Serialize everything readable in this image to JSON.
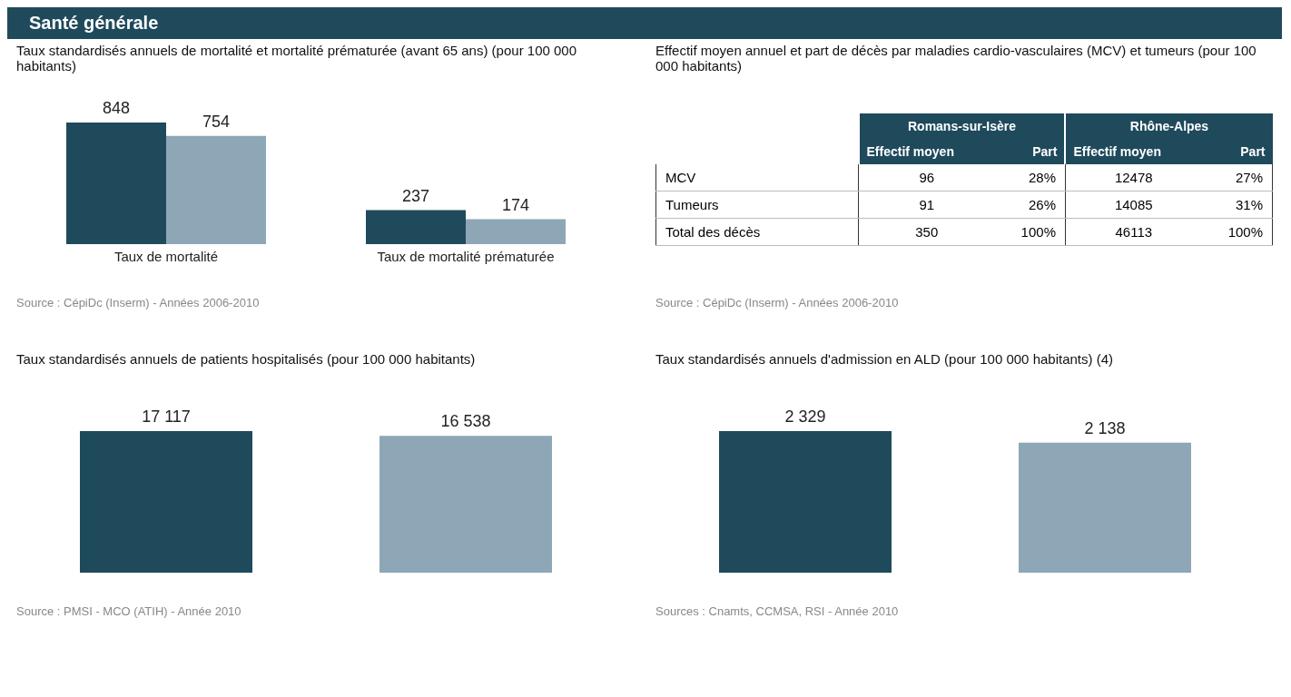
{
  "chart_data": [
    {
      "type": "bar",
      "title": "Santé générale",
      "subtitle": "Taux standardisés annuels de mortalité et mortalité prématurée (avant 65 ans) (pour 100 000 habitants)",
      "categories": [
        "Taux de mortalité",
        "Taux de mortalité prématurée"
      ],
      "series": [
        {
          "color": "#1f4a5c",
          "values": [
            848,
            237
          ]
        },
        {
          "color": "#8ea7b7",
          "values": [
            754,
            174
          ]
        }
      ],
      "data_labels": true,
      "grid": false,
      "legend": false,
      "tick_labels": "x",
      "annotations": [
        "Source : CépiDc (Inserm) - Années 2006-2010"
      ]
    },
    {
      "type": "other",
      "title": "Effectif moyen annuel et part de décès par maladies cardio-vasculaires (MCV) et tumeurs (pour 100 000 habitants)",
      "categories": [
        "Effectif moyen",
        "Part",
        "Effectif moyen",
        "Part"
      ],
      "y_categories": [
        "MCV",
        "Tumeurs",
        "Total des décès"
      ],
      "cells": [
        [
          "96",
          "28%",
          "12478",
          "27%"
        ],
        [
          "91",
          "26%",
          "14085",
          "31%"
        ],
        [
          "350",
          "100%",
          "46113",
          "100%"
        ]
      ],
      "annotations": [
        "Romans-sur-Isère",
        "Rhône-Alpes",
        "Source : CépiDc (Inserm) - Années 2006-2010"
      ]
    },
    {
      "type": "bar",
      "title": "Taux standardisés annuels de patients hospitalisés (pour 100 000 habitants)",
      "categories": [
        null,
        null
      ],
      "values": [
        17117,
        16538
      ],
      "colors": [
        "#1f4a5c",
        "#8ea7b7"
      ],
      "value_labels": [
        "17 117",
        "16 538"
      ],
      "grid": false,
      "legend": false,
      "tick_labels": false,
      "annotations": [
        "Source : PMSI - MCO (ATIH) - Année 2010"
      ]
    },
    {
      "type": "bar",
      "title": "Taux standardisés annuels d'admission en ALD (pour 100 000 habitants) (4)",
      "categories": [
        null,
        null
      ],
      "values": [
        2329,
        2138
      ],
      "colors": [
        "#1f4a5c",
        "#8ea7b7"
      ],
      "value_labels": [
        "2 329",
        "2 138"
      ],
      "grid": false,
      "legend": false,
      "tick_labels": false,
      "annotations": [
        "Sources : Cnamts, CCMSA, RSI - Année 2010"
      ]
    }
  ]
}
